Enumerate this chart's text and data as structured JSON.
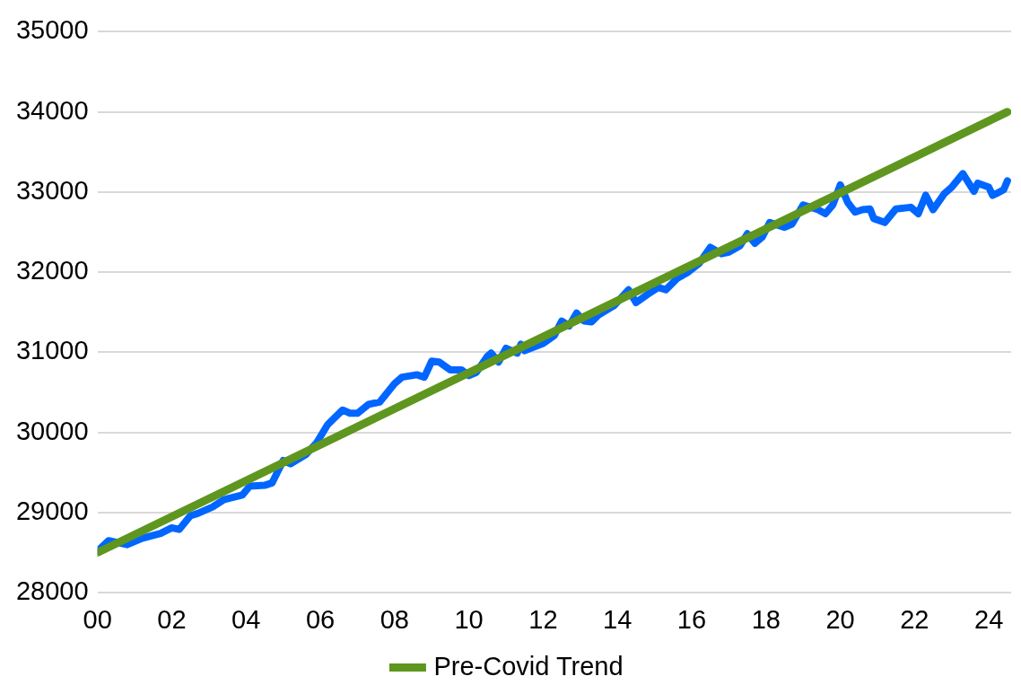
{
  "chart_data": {
    "type": "line",
    "x": [
      0,
      0.3,
      0.8,
      1.2,
      1.7,
      2.0,
      2.2,
      2.5,
      2.7,
      3.1,
      3.4,
      3.9,
      4.1,
      4.5,
      4.7,
      5.0,
      5.2,
      5.6,
      5.9,
      6.2,
      6.6,
      6.8,
      7.0,
      7.3,
      7.6,
      8.0,
      8.2,
      8.6,
      8.8,
      9.0,
      9.2,
      9.5,
      9.8,
      10.0,
      10.2,
      10.5,
      10.6,
      10.8,
      11.0,
      11.3,
      11.4,
      11.5,
      12.0,
      12.3,
      12.5,
      12.7,
      12.9,
      13.1,
      13.3,
      13.5,
      13.9,
      14.3,
      14.5,
      14.8,
      15.1,
      15.3,
      15.6,
      15.9,
      16.2,
      16.5,
      16.8,
      17.0,
      17.3,
      17.5,
      17.7,
      17.9,
      18.1,
      18.5,
      18.7,
      19.0,
      19.4,
      19.6,
      19.8,
      20.0,
      20.2,
      20.4,
      20.6,
      20.8,
      20.9,
      21.2,
      21.5,
      21.9,
      22.1,
      22.3,
      22.5,
      22.8,
      23.0,
      23.3,
      23.6,
      23.7,
      24.0,
      24.1,
      24.2,
      24.4,
      24.5
    ],
    "series": [
      {
        "color": "#0066ff",
        "values": [
          28520,
          28650,
          28600,
          28680,
          28740,
          28810,
          28790,
          28960,
          28990,
          29070,
          29160,
          29220,
          29330,
          29340,
          29370,
          29650,
          29610,
          29720,
          29870,
          30100,
          30280,
          30240,
          30240,
          30350,
          30380,
          30610,
          30690,
          30720,
          30690,
          30890,
          30880,
          30780,
          30780,
          30710,
          30750,
          30950,
          30990,
          30880,
          31050,
          30990,
          31100,
          31020,
          31110,
          31210,
          31390,
          31330,
          31490,
          31390,
          31380,
          31470,
          31580,
          31780,
          31620,
          31720,
          31810,
          31780,
          31920,
          32000,
          32110,
          32310,
          32230,
          32250,
          32330,
          32480,
          32360,
          32440,
          32620,
          32560,
          32600,
          32840,
          32780,
          32730,
          32840,
          33090,
          32870,
          32750,
          32780,
          32790,
          32670,
          32620,
          32790,
          32810,
          32730,
          32960,
          32780,
          32980,
          33060,
          33230,
          33010,
          33110,
          33060,
          32960,
          32980,
          33030,
          33140
        ]
      },
      {
        "name": "Pre-Covid Trend",
        "color": "#5f961f",
        "x": [
          0,
          24.5
        ],
        "values": [
          28500,
          34000
        ]
      }
    ],
    "xlim": [
      0,
      24.6
    ],
    "xticks": [
      {
        "value": 0,
        "label": "00"
      },
      {
        "value": 2,
        "label": "02"
      },
      {
        "value": 4,
        "label": "04"
      },
      {
        "value": 6,
        "label": "06"
      },
      {
        "value": 8,
        "label": "08"
      },
      {
        "value": 10,
        "label": "10"
      },
      {
        "value": 12,
        "label": "12"
      },
      {
        "value": 14,
        "label": "14"
      },
      {
        "value": 16,
        "label": "16"
      },
      {
        "value": 18,
        "label": "18"
      },
      {
        "value": 20,
        "label": "20"
      },
      {
        "value": 22,
        "label": "22"
      },
      {
        "value": 24,
        "label": "24"
      }
    ],
    "ylim": [
      28000,
      35000
    ],
    "yticks": [
      28000,
      29000,
      30000,
      31000,
      32000,
      33000,
      34000,
      35000
    ],
    "grid": "y",
    "legend": "bottom",
    "marker": "none",
    "line_style": "solid"
  }
}
